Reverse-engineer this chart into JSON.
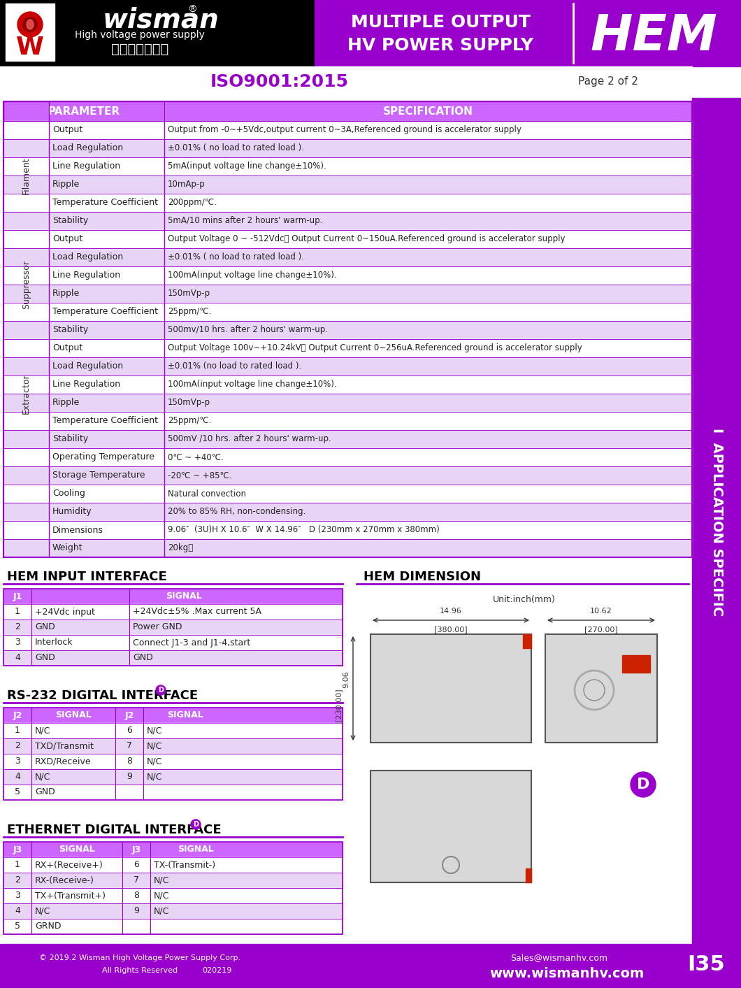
{
  "bg_color": "#ffffff",
  "header_bg_left": "#000000",
  "header_bg_right": "#9900cc",
  "purple": "#9900cc",
  "purple_light": "#cc66ff",
  "purple_dark": "#7700aa",
  "table_header_bg": "#cc66ff",
  "table_row_alt": "#e8d5f5",
  "table_row_white": "#ffffff",
  "table_border": "#9900cc",
  "side_bar_bg": "#9900cc",
  "footer_bg": "#9900cc",
  "iso_color": "#9900cc",
  "wisman_text": "wisman",
  "wisman_subtitle": "High voltage power supply",
  "wisman_chinese": "威思曼高压电源",
  "multiple_output": "MULTIPLE OUTPUT",
  "hv_power": "HV POWER SUPPLY",
  "hem_text": "HEM",
  "iso_label": "ISO9001:2015",
  "page_label": "Page 2 of 2",
  "param_header": "PARAMETER",
  "spec_header": "SPECIFICATION",
  "spec_rows": [
    {
      "group": "Filament",
      "param": "Output",
      "spec": "Output from -0~+5Vdc,output current 0~3A,Referenced ground is accelerator supply",
      "shade": false,
      "first_in_group": true
    },
    {
      "group": "Filament",
      "param": "Load Regulation",
      "spec": "±0.01% ( no load to rated load ).",
      "shade": true,
      "first_in_group": false
    },
    {
      "group": "Filament",
      "param": "Line Regulation",
      "spec": "5mA(input voltage line change±10%).",
      "shade": false,
      "first_in_group": false
    },
    {
      "group": "Filament",
      "param": "Ripple",
      "spec": "10mAp-p",
      "shade": true,
      "first_in_group": false
    },
    {
      "group": "Filament",
      "param": "Temperature Coefficient",
      "spec": "200ppm/℃.",
      "shade": false,
      "first_in_group": false
    },
    {
      "group": "Filament",
      "param": "Stability",
      "spec": "5mA/10 mins after 2 hours' warm-up.",
      "shade": true,
      "first_in_group": false
    },
    {
      "group": "Suppressor",
      "param": "Output",
      "spec": "Output Voltage 0 ~ -512Vdc， Output Current 0~150uA.Referenced ground is accelerator supply",
      "shade": false,
      "first_in_group": true
    },
    {
      "group": "Suppressor",
      "param": "Load Regulation",
      "spec": "±0.01% ( no load to rated load ).",
      "shade": true,
      "first_in_group": false
    },
    {
      "group": "Suppressor",
      "param": "Line Regulation",
      "spec": "100mA(input voltage line change±10%).",
      "shade": false,
      "first_in_group": false
    },
    {
      "group": "Suppressor",
      "param": "Ripple",
      "spec": "150mVp-p",
      "shade": true,
      "first_in_group": false
    },
    {
      "group": "Suppressor",
      "param": "Temperature Coefficient",
      "spec": "25ppm/℃.",
      "shade": false,
      "first_in_group": false
    },
    {
      "group": "Suppressor",
      "param": "Stability",
      "spec": "500mv/10 hrs. after 2 hours' warm-up.",
      "shade": true,
      "first_in_group": false
    },
    {
      "group": "Extractor",
      "param": "Output",
      "spec": "Output Voltage 100v~+10.24kV， Output Current 0~256uA.Referenced ground is accelerator supply",
      "shade": false,
      "first_in_group": true
    },
    {
      "group": "Extractor",
      "param": "Load Regulation",
      "spec": "±0.01% (no load to rated load ).",
      "shade": true,
      "first_in_group": false
    },
    {
      "group": "Extractor",
      "param": "Line Regulation",
      "spec": "100mA(input voltage line change±10%).",
      "shade": false,
      "first_in_group": false
    },
    {
      "group": "Extractor",
      "param": "Ripple",
      "spec": "150mVp-p",
      "shade": true,
      "first_in_group": false
    },
    {
      "group": "Extractor",
      "param": "Temperature Coefficient",
      "spec": "25ppm/℃.",
      "shade": false,
      "first_in_group": false
    },
    {
      "group": "Extractor",
      "param": "Stability",
      "spec": "500mV /10 hrs. after 2 hours' warm-up.",
      "shade": true,
      "first_in_group": false
    },
    {
      "group": "",
      "param": "Operating Temperature",
      "spec": "0℃ ~ +40℃.",
      "shade": false,
      "first_in_group": false
    },
    {
      "group": "",
      "param": "Storage Temperature",
      "spec": "-20℃ ~ +85℃.",
      "shade": true,
      "first_in_group": false
    },
    {
      "group": "",
      "param": "Cooling",
      "spec": "Natural convection",
      "shade": false,
      "first_in_group": false
    },
    {
      "group": "",
      "param": "Humidity",
      "spec": "20% to 85% RH, non-condensing.",
      "shade": true,
      "first_in_group": false
    },
    {
      "group": "",
      "param": "Dimensions",
      "spec": "9.06″  (3U)H X 10.6″  W X 14.96″   D (230mm x 270mm x 380mm)",
      "shade": false,
      "first_in_group": false
    },
    {
      "group": "",
      "param": "Weight",
      "spec": "20kg。",
      "shade": true,
      "first_in_group": false
    }
  ],
  "input_interface_title": "HEM INPUT INTERFACE",
  "input_interface_headers": [
    "J1",
    "SIGNAL"
  ],
  "input_interface_rows": [
    [
      "1",
      "+24Vdc input",
      "+24Vdc±5% .Max current 5A"
    ],
    [
      "2",
      "GND",
      "Power GND"
    ],
    [
      "3",
      "Interlock",
      "Connect J1-3 and J1-4,start"
    ],
    [
      "4",
      "GND",
      "GND"
    ]
  ],
  "rs232_title": "RS-232 DIGITAL INTERFACE",
  "rs232_headers": [
    "J2",
    "SIGNAL",
    "J2",
    "SIGNAL"
  ],
  "rs232_rows": [
    [
      "1",
      "N/C",
      "6",
      "N/C"
    ],
    [
      "2",
      "TXD/Transmit",
      "7",
      "N/C"
    ],
    [
      "3",
      "RXD/Receive",
      "8",
      "N/C"
    ],
    [
      "4",
      "N/C",
      "9",
      "N/C"
    ],
    [
      "5",
      "GND",
      "",
      ""
    ]
  ],
  "ethernet_title": "ETHERNET DIGITAL INTERFACE",
  "ethernet_headers": [
    "J3",
    "SIGNAL",
    "J3",
    "SIGNAL"
  ],
  "ethernet_rows": [
    [
      "1",
      "RX+(Receive+)",
      "6",
      "TX-(Transmit-)"
    ],
    [
      "2",
      "RX-(Receive-)",
      "7",
      "N/C"
    ],
    [
      "3",
      "TX+(Transmit+)",
      "8",
      "N/C"
    ],
    [
      "4",
      "N/C",
      "9",
      "N/C"
    ],
    [
      "5",
      "GRND",
      "",
      ""
    ]
  ],
  "hem_dimension_title": "HEM DIMENSION",
  "dim_unit": "Unit:inch(mm)",
  "dim_width1": "14.96",
  "dim_width1_mm": "[380.00]",
  "dim_width2": "10.62",
  "dim_width2_mm": "[270.00]",
  "dim_height": "9.06",
  "dim_height_mm": "[230.00]",
  "sidebar_text": "I  APPLICATION SPECIFIC",
  "footer_left": "© 2019.2 Wisman High Voltage Power Supply Corp.\n    All Rights Reserved        020219",
  "footer_email": "Sales@wismanhv.com",
  "footer_web": "www.wismanhv.com",
  "footer_page": "I35"
}
